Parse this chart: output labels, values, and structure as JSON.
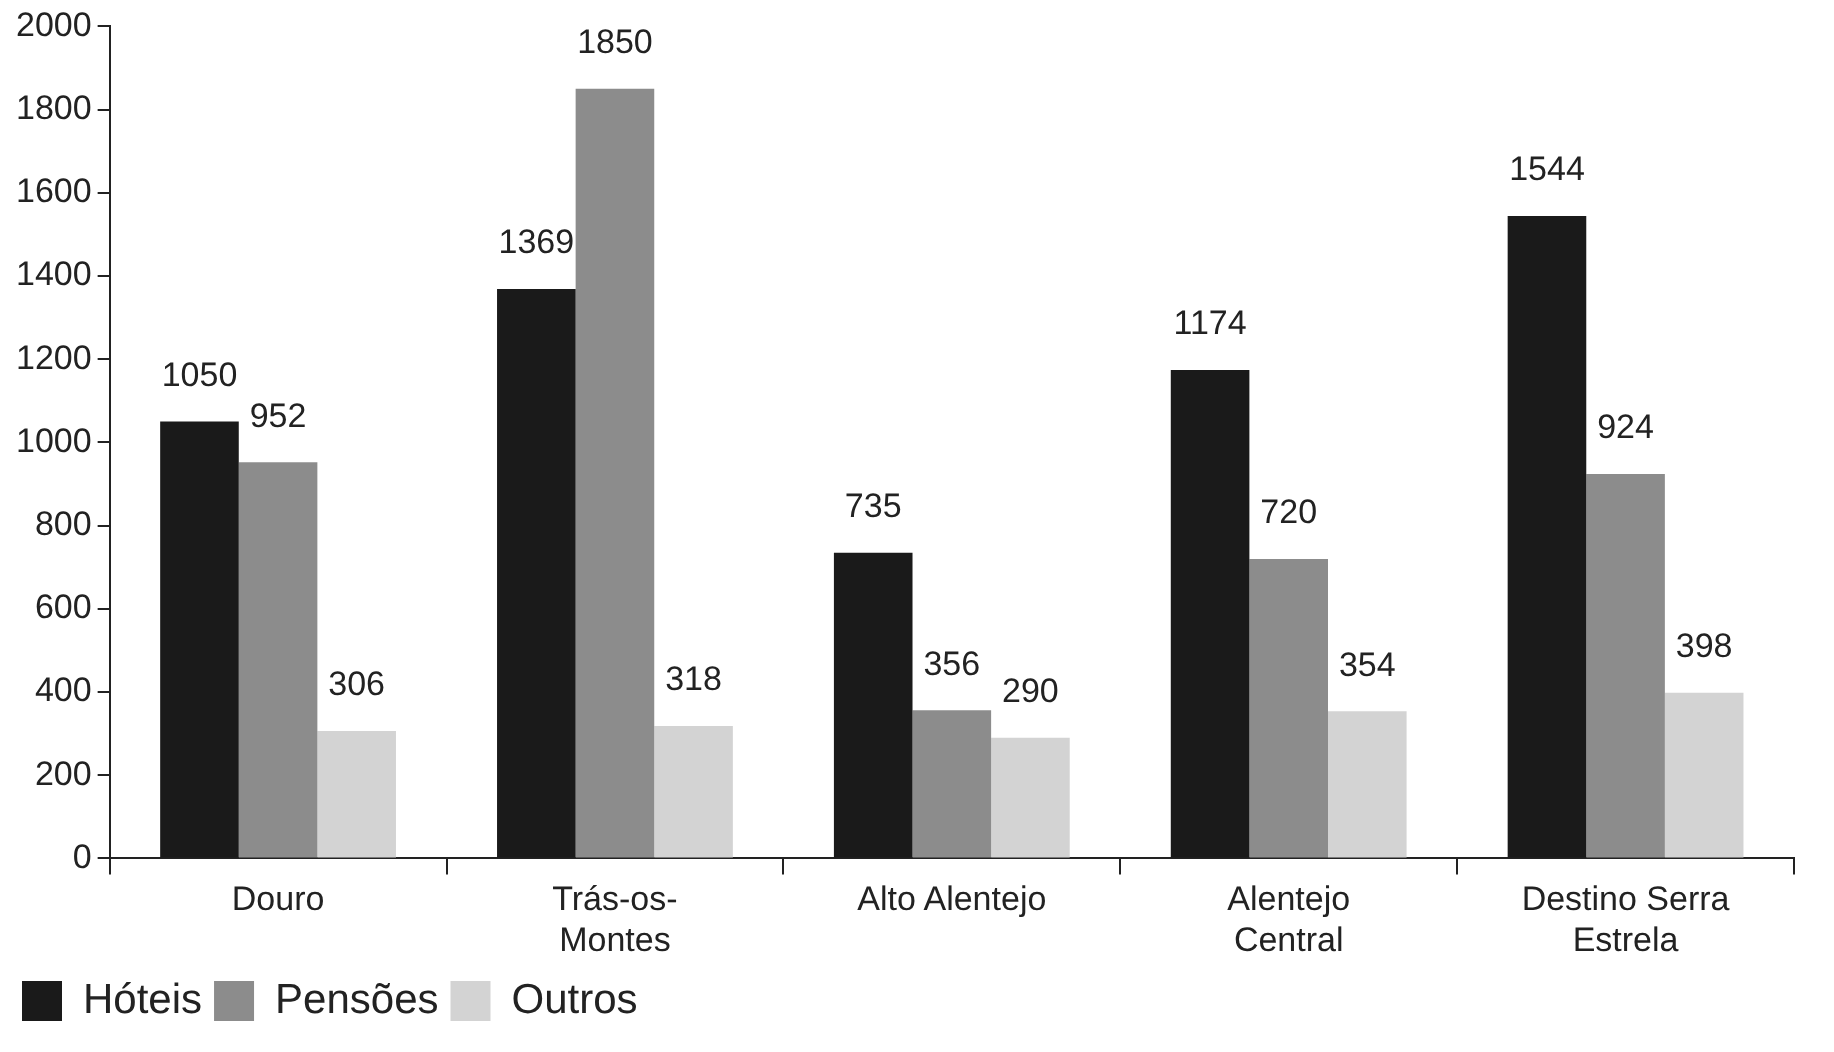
{
  "chart_data": {
    "type": "bar",
    "categories": [
      "Douro",
      "Trás-os-Montes",
      "Alto Alentejo",
      "Alentejo Central",
      "Destino Serra Estrela"
    ],
    "series": [
      {
        "name": "Hóteis",
        "color": "#1a1a1a",
        "values": [
          1050,
          1369,
          735,
          1174,
          1544
        ]
      },
      {
        "name": "Pensões",
        "color": "#8c8c8c",
        "values": [
          952,
          1850,
          356,
          720,
          924
        ]
      },
      {
        "name": "Outros",
        "color": "#d3d3d3",
        "values": [
          306,
          318,
          290,
          354,
          398
        ]
      }
    ],
    "ylim": [
      0,
      2000
    ],
    "yticks": [
      0,
      200,
      400,
      600,
      800,
      1000,
      1200,
      1400,
      1600,
      1800,
      2000
    ],
    "grid": false,
    "legend": "bottom left",
    "data_labels": true
  }
}
